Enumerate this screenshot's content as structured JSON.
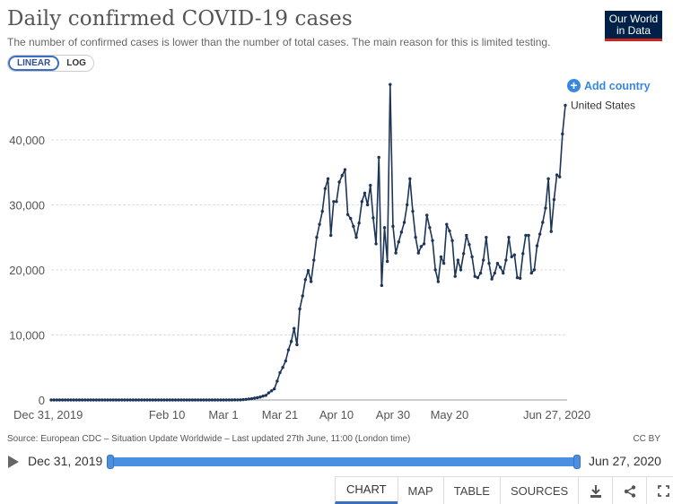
{
  "header": {
    "title": "Daily confirmed COVID-19 cases",
    "subtitle": "The number of confirmed cases is lower than the number of total cases. The main reason for this is limited testing.",
    "logo_line1": "Our World",
    "logo_line2": "in Data"
  },
  "scale": {
    "linear": "LINEAR",
    "log": "LOG",
    "selected": "LINEAR"
  },
  "controls": {
    "add_country": "Add country"
  },
  "chart_data": {
    "type": "line",
    "title": "Daily confirmed COVID-19 cases",
    "ylim": [
      0,
      48529
    ],
    "y_ticks": [
      "0",
      "10,000",
      "20,000",
      "30,000",
      "40,000"
    ],
    "y_tick_values": [
      0,
      10000,
      20000,
      30000,
      40000
    ],
    "x_ticks": [
      "Dec 31, 2019",
      "Feb 10",
      "Mar 1",
      "Mar 21",
      "Apr 10",
      "Apr 30",
      "May 20",
      "Jun 27, 2020"
    ],
    "x_tick_days": [
      0,
      41,
      61,
      81,
      101,
      121,
      141,
      179
    ],
    "x_start": "Dec 31, 2019",
    "x_end": "Jun 27, 2020",
    "grid": "horizontal",
    "series": [
      {
        "name": "United States",
        "color": "#1d3557",
        "values": [
          0,
          0,
          0,
          0,
          0,
          0,
          0,
          0,
          0,
          0,
          0,
          0,
          0,
          0,
          0,
          0,
          0,
          0,
          0,
          0,
          0,
          1,
          0,
          0,
          0,
          1,
          0,
          0,
          0,
          0,
          1,
          0,
          1,
          0,
          1,
          0,
          0,
          0,
          0,
          0,
          0,
          0,
          0,
          0,
          0,
          0,
          0,
          0,
          0,
          0,
          0,
          0,
          0,
          0,
          0,
          0,
          1,
          0,
          0,
          0,
          0,
          0,
          3,
          5,
          4,
          18,
          14,
          18,
          60,
          100,
          150,
          200,
          290,
          350,
          450,
          600,
          700,
          1100,
          1400,
          1700,
          2900,
          4200,
          5000,
          6000,
          7700,
          9000,
          11000,
          8500,
          14000,
          16000,
          18500,
          19900,
          18200,
          21500,
          25000,
          27000,
          29000,
          32500,
          34000,
          25300,
          30500,
          30500,
          33500,
          34500,
          35400,
          28500,
          27900,
          26700,
          25000,
          27200,
          30500,
          31800,
          30000,
          33000,
          28000,
          24000,
          37300,
          17600,
          26500,
          21300,
          48500,
          26700,
          22600,
          24300,
          25800,
          27300,
          30000,
          34000,
          29000,
          25000,
          22600,
          23600,
          24000,
          28400,
          26500,
          24500,
          20000,
          18200,
          22000,
          21000,
          27000,
          26000,
          24500,
          19000,
          21500,
          20000,
          22500,
          25300,
          23900,
          22000,
          19000,
          18800,
          19500,
          21500,
          25000,
          21000,
          18600,
          19500,
          21000,
          20400,
          19500,
          21500,
          25000,
          22000,
          22300,
          18800,
          18700,
          22500,
          25300,
          25300,
          19500,
          20000,
          23700,
          25500,
          27300,
          29500,
          34000,
          25900,
          30800,
          34600,
          34300,
          40900,
          45300
        ]
      }
    ]
  },
  "footer": {
    "source": "Source: European CDC – Situation Update Worldwide – Last updated 27th June, 11:00 (London time)",
    "license": "CC BY"
  },
  "timeline": {
    "start": "Dec 31, 2019",
    "end": "Jun 27, 2020"
  },
  "tabs": [
    "CHART",
    "MAP",
    "TABLE",
    "SOURCES"
  ],
  "icons": {
    "download": "download-icon",
    "share": "share-icon",
    "fullscreen": "fullscreen-icon"
  }
}
